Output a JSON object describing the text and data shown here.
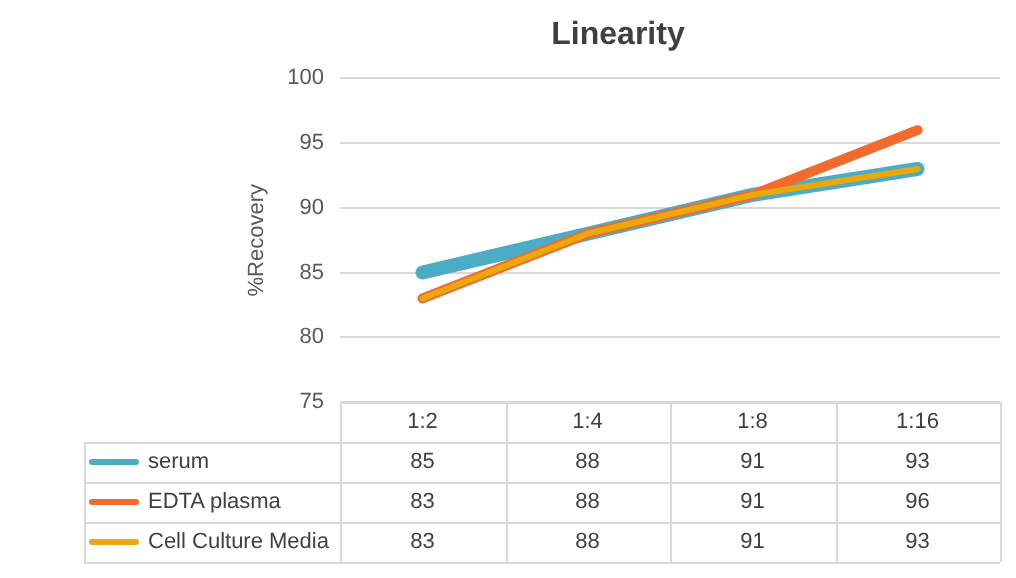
{
  "chart_data": {
    "type": "line",
    "title": "Linearity",
    "ylabel": "%Recovery",
    "categories": [
      "1:2",
      "1:4",
      "1:8",
      "1:16"
    ],
    "series": [
      {
        "name": "serum",
        "color": "#4bacc6",
        "values": [
          85,
          88,
          91,
          93
        ]
      },
      {
        "name": "EDTA plasma",
        "color": "#f26b2d",
        "values": [
          83,
          88,
          91,
          96
        ]
      },
      {
        "name": "Cell Culture Media",
        "color": "#e9a80c",
        "values": [
          83,
          88,
          91,
          93
        ]
      }
    ],
    "ylim": [
      75,
      100
    ],
    "yticks": [
      75,
      80,
      85,
      90,
      95,
      100
    ],
    "grid": "y",
    "legend": "bottom",
    "data_labels": true,
    "marker": "none",
    "line_style": "solid"
  }
}
